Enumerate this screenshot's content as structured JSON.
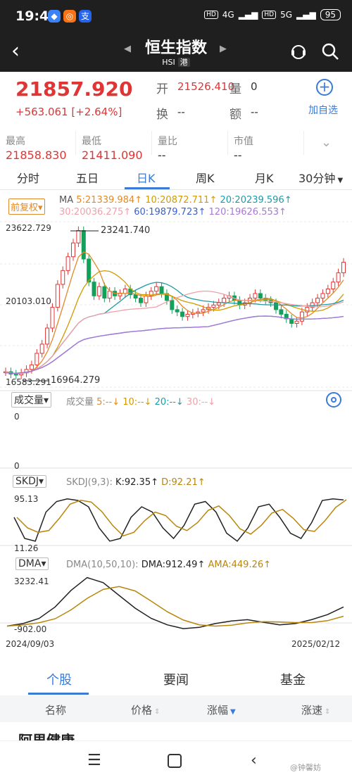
{
  "status": {
    "time": "19:41",
    "net1": "4G",
    "net2": "5G",
    "hd": "HD",
    "battery": "95"
  },
  "header": {
    "title": "恒生指数",
    "code": "HSI",
    "market": "港"
  },
  "quote": {
    "price": "21857.920",
    "change": "+563.061",
    "change_pct": "[+2.64%]",
    "open_label": "开",
    "open_value": "21526.410",
    "vol_label": "量",
    "vol_value": "0",
    "turnover_label": "换",
    "turnover_value": "--",
    "amount_label": "额",
    "amount_value": "--",
    "add_fav": "加自选",
    "high_label": "最高",
    "high_value": "21858.830",
    "low_label": "最低",
    "low_value": "21411.090",
    "ratio_label": "量比",
    "ratio_value": "--",
    "mcap_label": "市值",
    "mcap_value": "--"
  },
  "tabs": [
    "分时",
    "五日",
    "日K",
    "周K",
    "月K",
    "30分钟"
  ],
  "active_tab": "日K",
  "kline": {
    "adj_label": "前复权",
    "ma_label": "MA",
    "ma5": "5:21339.984↑",
    "ma10": "10:20872.711↑",
    "ma20": "20:20239.596↑",
    "ma30": "30:20036.275↑",
    "ma60": "60:19879.723↑",
    "ma120": "120:19626.553↑",
    "y_top": "23622.729",
    "y_mid": "20103.010",
    "y_bot": "16583.291",
    "max_mark": "23241.740",
    "min_mark": "16964.279"
  },
  "volume": {
    "tag": "成交量",
    "label": "成交量",
    "ma5": "5:--↓",
    "ma10": "10:--↓",
    "ma20": "20:--↓",
    "ma30": "30:--↓",
    "y_top": "0",
    "y_bot": "0"
  },
  "skdj": {
    "tag": "SKDJ",
    "label": "SKDJ(9,3):",
    "k": "K:92.35↑",
    "d": "D:92.21↑",
    "y_top": "95.13",
    "y_bot": "11.26"
  },
  "dma": {
    "tag": "DMA",
    "label": "DMA(10,50,10):",
    "dma": "DMA:912.49↑",
    "ama": "AMA:449.26↑",
    "y_top": "3232.41",
    "y_bot": "-902.00"
  },
  "dates": {
    "start": "2024/09/03",
    "end": "2025/02/12"
  },
  "bottom_tabs": [
    "个股",
    "要闻",
    "基金"
  ],
  "columns": [
    "名称",
    "价格",
    "涨幅",
    "涨速"
  ],
  "first_row": "阿里健康",
  "watermark": "@钟馨妨",
  "colors": {
    "up": "#e03535",
    "down": "#12a05a",
    "accent": "#3a7bd5",
    "ma5": "#e08a2b",
    "ma10": "#d19a00",
    "ma20": "#1e9aa6",
    "ma30": "#f2a0a8",
    "ma60": "#3a5fcd",
    "ma120": "#a878d8"
  }
}
